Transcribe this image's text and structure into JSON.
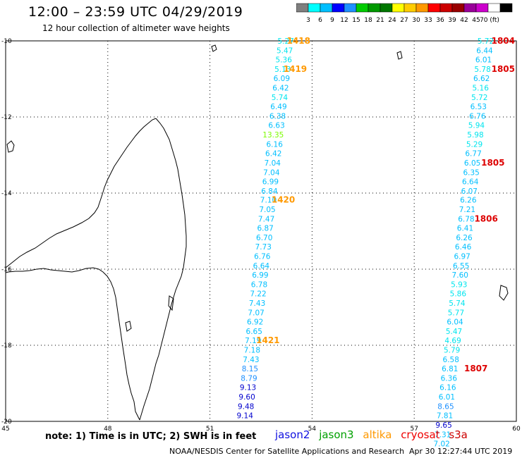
{
  "header": {
    "title": "12:00 – 23:59 UTC 04/29/2019",
    "subtitle": "12 hour collection of altimeter wave heights"
  },
  "color_scale": {
    "colors": [
      "#7f7f7f",
      "#00ffff",
      "#00bfff",
      "#0000ff",
      "#1e90ff",
      "#00cc00",
      "#009900",
      "#007700",
      "#ffff00",
      "#ffcc00",
      "#ff9900",
      "#ff0000",
      "#cc0000",
      "#990000",
      "#990099",
      "#cc00cc",
      "#ffffff",
      "#000000"
    ],
    "labels": [
      "3",
      "6",
      "9",
      "12",
      "15",
      "18",
      "21",
      "24",
      "27",
      "30",
      "33",
      "36",
      "39",
      "42",
      "45",
      "70 (ft)"
    ]
  },
  "axes": {
    "lon_labels": [
      "45",
      "48",
      "51",
      "54",
      "57",
      "60"
    ],
    "lat_labels": [
      "-10",
      "-12",
      "-14",
      "-16",
      "-18",
      "-20"
    ]
  },
  "swath_west": {
    "readings": [
      {
        "v": "5.27",
        "c": "#00e5ee",
        "lon": 53.47,
        "lat": -10.0
      },
      {
        "v": "5.47",
        "c": "#00e5ee",
        "lon": 53.44,
        "lat": -10.25
      },
      {
        "v": "5.36",
        "c": "#00e5ee",
        "lon": 53.41,
        "lat": -10.49
      },
      {
        "v": "5.13",
        "c": "#00e5ee",
        "lon": 53.38,
        "lat": -10.74
      },
      {
        "v": "6.09",
        "c": "#00bfff",
        "lon": 53.35,
        "lat": -10.98
      },
      {
        "v": "6.42",
        "c": "#00bfff",
        "lon": 53.32,
        "lat": -11.23
      },
      {
        "v": "5.74",
        "c": "#00e5ee",
        "lon": 53.29,
        "lat": -11.48
      },
      {
        "v": "6.49",
        "c": "#00bfff",
        "lon": 53.26,
        "lat": -11.72
      },
      {
        "v": "6.38",
        "c": "#00bfff",
        "lon": 53.23,
        "lat": -11.97
      },
      {
        "v": "6.63",
        "c": "#00bfff",
        "lon": 53.2,
        "lat": -12.21
      },
      {
        "v": "13.35",
        "c": "#7cfc00",
        "lon": 53.17,
        "lat": -12.46
      },
      {
        "v": "6.16",
        "c": "#00bfff",
        "lon": 53.14,
        "lat": -12.71
      },
      {
        "v": "6.42",
        "c": "#00bfff",
        "lon": 53.11,
        "lat": -12.95
      },
      {
        "v": "7.04",
        "c": "#00bfff",
        "lon": 53.08,
        "lat": -13.2
      },
      {
        "v": "7.04",
        "c": "#00bfff",
        "lon": 53.05,
        "lat": -13.45
      },
      {
        "v": "6.99",
        "c": "#00bfff",
        "lon": 53.02,
        "lat": -13.69
      },
      {
        "v": "6.84",
        "c": "#00bfff",
        "lon": 52.99,
        "lat": -13.94
      },
      {
        "v": "7.10",
        "c": "#00bfff",
        "lon": 52.96,
        "lat": -14.18
      },
      {
        "v": "7.05",
        "c": "#00bfff",
        "lon": 52.93,
        "lat": -14.43
      },
      {
        "v": "7.47",
        "c": "#00bfff",
        "lon": 52.9,
        "lat": -14.68
      },
      {
        "v": "6.87",
        "c": "#00bfff",
        "lon": 52.87,
        "lat": -14.92
      },
      {
        "v": "6.70",
        "c": "#00bfff",
        "lon": 52.84,
        "lat": -15.17
      },
      {
        "v": "7.73",
        "c": "#00bfff",
        "lon": 52.81,
        "lat": -15.41
      },
      {
        "v": "6.76",
        "c": "#00bfff",
        "lon": 52.78,
        "lat": -15.66
      },
      {
        "v": "6.64",
        "c": "#00bfff",
        "lon": 52.75,
        "lat": -15.91
      },
      {
        "v": "6.99",
        "c": "#00bfff",
        "lon": 52.72,
        "lat": -16.15
      },
      {
        "v": "6.78",
        "c": "#00bfff",
        "lon": 52.69,
        "lat": -16.4
      },
      {
        "v": "7.22",
        "c": "#00bfff",
        "lon": 52.66,
        "lat": -16.64
      },
      {
        "v": "7.43",
        "c": "#00bfff",
        "lon": 52.63,
        "lat": -16.89
      },
      {
        "v": "7.07",
        "c": "#00bfff",
        "lon": 52.6,
        "lat": -17.14
      },
      {
        "v": "6.92",
        "c": "#00bfff",
        "lon": 52.57,
        "lat": -17.38
      },
      {
        "v": "6.65",
        "c": "#00bfff",
        "lon": 52.54,
        "lat": -17.63
      },
      {
        "v": "7.19",
        "c": "#00bfff",
        "lon": 52.51,
        "lat": -17.87
      },
      {
        "v": "7.18",
        "c": "#00bfff",
        "lon": 52.48,
        "lat": -18.12
      },
      {
        "v": "7.43",
        "c": "#00bfff",
        "lon": 52.45,
        "lat": -18.37
      },
      {
        "v": "8.15",
        "c": "#1e90ff",
        "lon": 52.42,
        "lat": -18.61
      },
      {
        "v": "8.79",
        "c": "#1e90ff",
        "lon": 52.39,
        "lat": -18.86
      },
      {
        "v": "9.13",
        "c": "#0000cd",
        "lon": 52.36,
        "lat": -19.1
      },
      {
        "v": "9.60",
        "c": "#0000cd",
        "lon": 52.33,
        "lat": -19.35
      },
      {
        "v": "9.48",
        "c": "#0000cd",
        "lon": 52.3,
        "lat": -19.6
      },
      {
        "v": "9.14",
        "c": "#0000cd",
        "lon": 52.27,
        "lat": -19.84
      }
    ],
    "times": [
      {
        "t": "1418",
        "lon": 53.95,
        "lat": -10.0
      },
      {
        "t": "1419",
        "lon": 53.85,
        "lat": -10.74
      },
      {
        "t": "1420",
        "lon": 53.5,
        "lat": -14.18
      },
      {
        "t": "1421",
        "lon": 53.05,
        "lat": -17.87
      }
    ]
  },
  "swath_east": {
    "readings": [
      {
        "v": "5.72",
        "c": "#00e5ee",
        "lon": 59.34,
        "lat": -10.0
      },
      {
        "v": "6.44",
        "c": "#00bfff",
        "lon": 59.31,
        "lat": -10.25
      },
      {
        "v": "6.01",
        "c": "#00bfff",
        "lon": 59.28,
        "lat": -10.49
      },
      {
        "v": "5.78",
        "c": "#00e5ee",
        "lon": 59.25,
        "lat": -10.74
      },
      {
        "v": "6.62",
        "c": "#00bfff",
        "lon": 59.22,
        "lat": -10.98
      },
      {
        "v": "5.16",
        "c": "#00e5ee",
        "lon": 59.19,
        "lat": -11.23
      },
      {
        "v": "5.72",
        "c": "#00e5ee",
        "lon": 59.16,
        "lat": -11.48
      },
      {
        "v": "6.53",
        "c": "#00bfff",
        "lon": 59.13,
        "lat": -11.72
      },
      {
        "v": "6.76",
        "c": "#00bfff",
        "lon": 59.1,
        "lat": -11.97
      },
      {
        "v": "5.94",
        "c": "#00e5ee",
        "lon": 59.07,
        "lat": -12.21
      },
      {
        "v": "5.98",
        "c": "#00e5ee",
        "lon": 59.04,
        "lat": -12.46
      },
      {
        "v": "5.29",
        "c": "#00e5ee",
        "lon": 59.01,
        "lat": -12.71
      },
      {
        "v": "6.77",
        "c": "#00bfff",
        "lon": 58.98,
        "lat": -12.95
      },
      {
        "v": "6.05",
        "c": "#00bfff",
        "lon": 58.95,
        "lat": -13.2
      },
      {
        "v": "6.35",
        "c": "#00bfff",
        "lon": 58.92,
        "lat": -13.45
      },
      {
        "v": "6.64",
        "c": "#00bfff",
        "lon": 58.89,
        "lat": -13.69
      },
      {
        "v": "6.07",
        "c": "#00bfff",
        "lon": 58.86,
        "lat": -13.94
      },
      {
        "v": "6.26",
        "c": "#00bfff",
        "lon": 58.83,
        "lat": -14.18
      },
      {
        "v": "7.21",
        "c": "#00bfff",
        "lon": 58.8,
        "lat": -14.43
      },
      {
        "v": "6.78",
        "c": "#00bfff",
        "lon": 58.77,
        "lat": -14.68
      },
      {
        "v": "6.41",
        "c": "#00bfff",
        "lon": 58.74,
        "lat": -14.92
      },
      {
        "v": "6.26",
        "c": "#00bfff",
        "lon": 58.71,
        "lat": -15.17
      },
      {
        "v": "6.46",
        "c": "#00bfff",
        "lon": 58.68,
        "lat": -15.41
      },
      {
        "v": "6.97",
        "c": "#00bfff",
        "lon": 58.65,
        "lat": -15.66
      },
      {
        "v": "6.55",
        "c": "#00bfff",
        "lon": 58.62,
        "lat": -15.91
      },
      {
        "v": "7.60",
        "c": "#00bfff",
        "lon": 58.59,
        "lat": -16.15
      },
      {
        "v": "5.93",
        "c": "#00e5ee",
        "lon": 58.56,
        "lat": -16.4
      },
      {
        "v": "5.86",
        "c": "#00e5ee",
        "lon": 58.53,
        "lat": -16.64
      },
      {
        "v": "5.74",
        "c": "#00e5ee",
        "lon": 58.5,
        "lat": -16.89
      },
      {
        "v": "5.77",
        "c": "#00e5ee",
        "lon": 58.47,
        "lat": -17.14
      },
      {
        "v": "6.04",
        "c": "#00bfff",
        "lon": 58.44,
        "lat": -17.38
      },
      {
        "v": "5.47",
        "c": "#00e5ee",
        "lon": 58.41,
        "lat": -17.63
      },
      {
        "v": "4.69",
        "c": "#00e5ee",
        "lon": 58.38,
        "lat": -17.87
      },
      {
        "v": "5.79",
        "c": "#00e5ee",
        "lon": 58.35,
        "lat": -18.12
      },
      {
        "v": "6.58",
        "c": "#00bfff",
        "lon": 58.32,
        "lat": -18.37
      },
      {
        "v": "6.81",
        "c": "#00bfff",
        "lon": 58.29,
        "lat": -18.61
      },
      {
        "v": "6.36",
        "c": "#00bfff",
        "lon": 58.26,
        "lat": -18.86
      },
      {
        "v": "6.16",
        "c": "#00bfff",
        "lon": 58.23,
        "lat": -19.1
      },
      {
        "v": "6.01",
        "c": "#00bfff",
        "lon": 58.2,
        "lat": -19.35
      },
      {
        "v": "8.65",
        "c": "#1e90ff",
        "lon": 58.17,
        "lat": -19.6
      },
      {
        "v": "7.81",
        "c": "#00bfff",
        "lon": 58.14,
        "lat": -19.84
      },
      {
        "v": "9.65",
        "c": "#0000cd",
        "lon": 58.11,
        "lat": -20.09
      },
      {
        "v": "7.31",
        "c": "#00bfff",
        "lon": 58.08,
        "lat": -20.34
      },
      {
        "v": "7.02",
        "c": "#00bfff",
        "lon": 58.05,
        "lat": -20.58
      }
    ],
    "times": [
      {
        "t": "1804",
        "lon": 60.0,
        "lat": -10.0
      },
      {
        "t": "1805",
        "lon": 60.0,
        "lat": -10.74
      },
      {
        "t": "1805",
        "lon": 59.7,
        "lat": -13.2
      },
      {
        "t": "1806",
        "lon": 59.5,
        "lat": -14.68
      },
      {
        "t": "1807",
        "lon": 59.2,
        "lat": -18.61
      }
    ]
  },
  "legend": {
    "note": "note: 1) Time is in UTC; 2) SWH is in feet",
    "satellites": [
      {
        "name": "jason2",
        "color": "#1010e0"
      },
      {
        "name": "jason3",
        "color": "#00a000"
      },
      {
        "name": "altika",
        "color": "#ff9900"
      },
      {
        "name": "cryosat",
        "color": "#ee0000"
      },
      {
        "name": "s3a",
        "color": "#cc0000"
      }
    ]
  },
  "footer": {
    "credit": "NOAA/NESDIS Center for Satellite Applications and Research",
    "timestamp": "Apr 30 12:27:44 UTC 2019"
  }
}
